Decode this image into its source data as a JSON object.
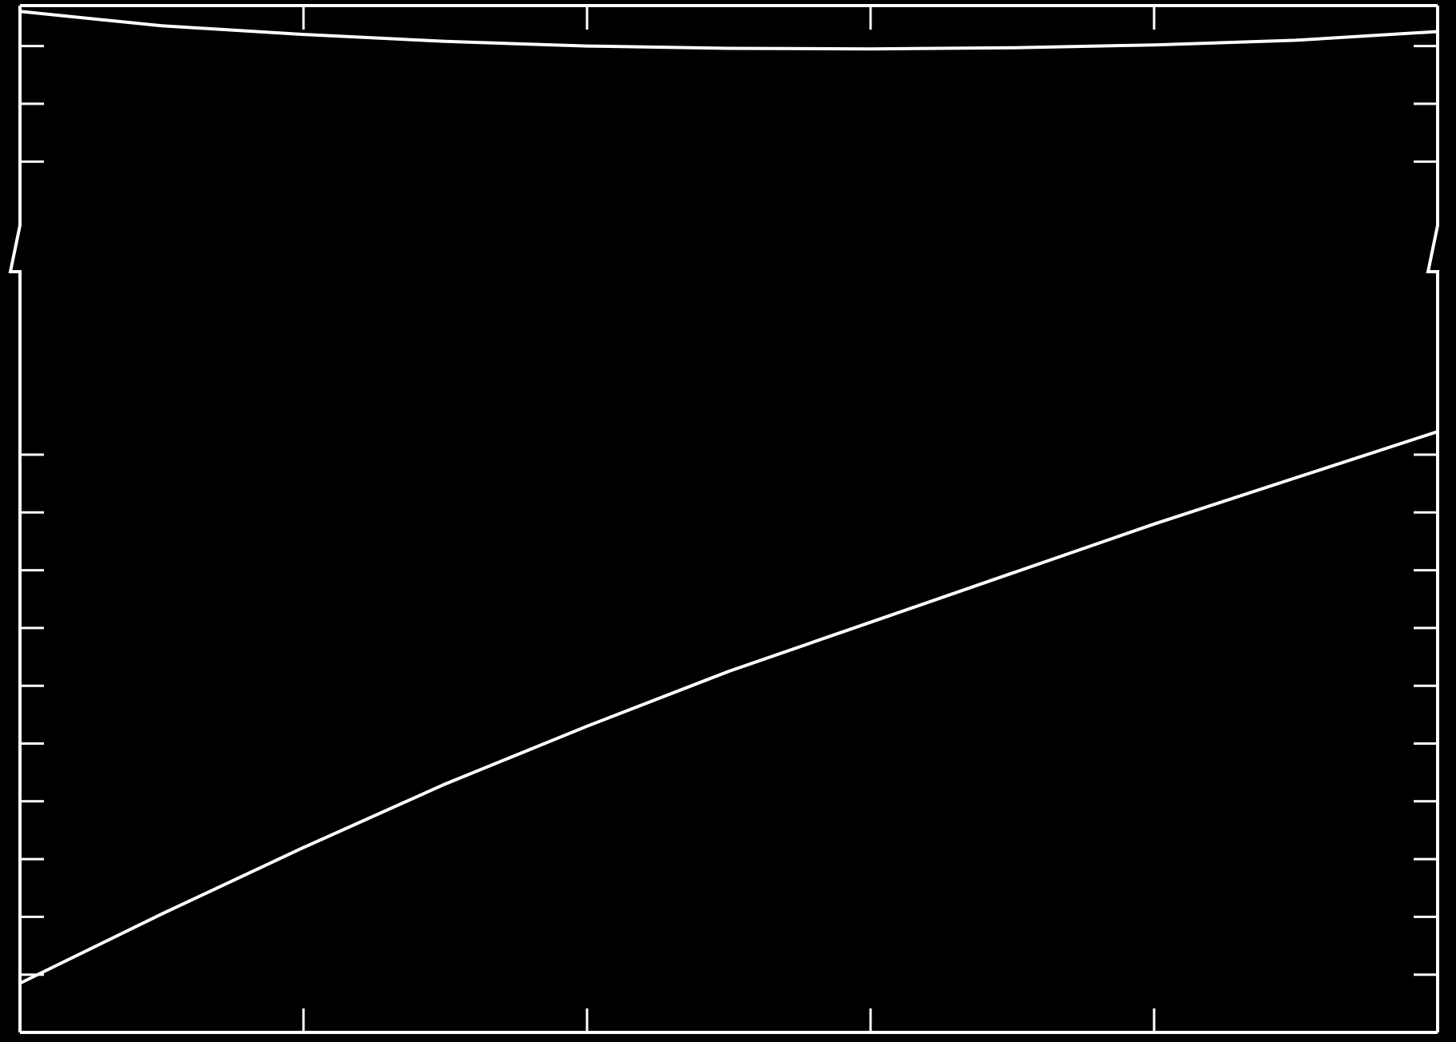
{
  "chart_data": {
    "type": "line",
    "title": "",
    "xlabel": "",
    "ylabel": "",
    "xlim": [
      0,
      5
    ],
    "ylim": [
      0,
      17.7
    ],
    "axis_break": "y",
    "grid": false,
    "legend": "none",
    "tick_labels_printed": false,
    "x_ticks": [
      1,
      2,
      3,
      4
    ],
    "y_ticks_lower": [
      1,
      2,
      3,
      4,
      5,
      6,
      7,
      8,
      9,
      10
    ],
    "y_ticks_upper": [
      15,
      16,
      17
    ],
    "series": [
      {
        "x": [
          0,
          0.5,
          1,
          1.5,
          2,
          2.5,
          3,
          3.5,
          4,
          4.5,
          5
        ],
        "y": [
          17.6,
          17.35,
          17.2,
          17.08,
          17.0,
          16.96,
          16.95,
          16.97,
          17.02,
          17.1,
          17.25
        ]
      },
      {
        "x": [
          0,
          0.5,
          1,
          1.5,
          2,
          2.5,
          3,
          3.5,
          4,
          4.5,
          5
        ],
        "y": [
          0.85,
          2.05,
          3.2,
          4.3,
          5.3,
          6.25,
          7.1,
          7.95,
          8.8,
          9.6,
          10.4
        ]
      }
    ],
    "colors": {
      "background": "#000000",
      "foreground": "#ffffff"
    }
  }
}
